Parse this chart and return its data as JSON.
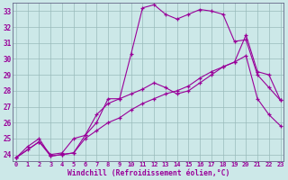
{
  "xlabel": "Windchill (Refroidissement éolien,°C)",
  "bg_color": "#cce8e8",
  "line_color": "#990099",
  "grid_color": "#99bbbb",
  "xlim_min": -0.3,
  "xlim_max": 23.3,
  "ylim_min": 23.6,
  "ylim_max": 33.5,
  "xticks": [
    0,
    1,
    2,
    3,
    4,
    5,
    6,
    7,
    8,
    9,
    10,
    11,
    12,
    13,
    14,
    15,
    16,
    17,
    18,
    19,
    20,
    21,
    22,
    23
  ],
  "yticks": [
    24,
    25,
    26,
    27,
    28,
    29,
    30,
    31,
    32,
    33
  ],
  "line1_x": [
    0,
    1,
    2,
    3,
    4,
    5,
    6,
    7,
    8,
    9,
    10,
    11,
    12,
    13,
    14,
    15,
    16,
    17,
    18,
    19,
    20,
    21,
    22,
    23
  ],
  "line1_y": [
    23.8,
    24.5,
    25.0,
    23.9,
    24.0,
    24.1,
    25.2,
    26.0,
    27.5,
    27.5,
    30.3,
    33.2,
    33.4,
    32.8,
    32.5,
    32.8,
    33.1,
    33.0,
    32.8,
    31.1,
    31.2,
    29.0,
    28.2,
    27.4
  ],
  "line2_x": [
    0,
    2,
    3,
    4,
    5,
    6,
    7,
    8,
    9,
    10,
    11,
    12,
    13,
    14,
    15,
    16,
    17,
    18,
    19,
    20,
    21,
    22,
    23
  ],
  "line2_y": [
    23.8,
    24.8,
    24.0,
    24.1,
    25.0,
    25.2,
    26.5,
    27.2,
    27.5,
    27.8,
    28.1,
    28.5,
    28.2,
    27.8,
    28.0,
    28.5,
    29.0,
    29.5,
    29.8,
    31.5,
    29.2,
    29.0,
    27.4
  ],
  "line3_x": [
    0,
    1,
    2,
    3,
    4,
    5,
    6,
    7,
    8,
    9,
    10,
    11,
    12,
    13,
    14,
    15,
    16,
    17,
    18,
    19,
    20,
    21,
    22,
    23
  ],
  "line3_y": [
    23.8,
    24.3,
    24.8,
    23.9,
    24.0,
    24.1,
    25.0,
    25.5,
    26.0,
    26.3,
    26.8,
    27.2,
    27.5,
    27.8,
    28.0,
    28.3,
    28.8,
    29.2,
    29.5,
    29.8,
    30.2,
    27.5,
    26.5,
    25.8
  ]
}
